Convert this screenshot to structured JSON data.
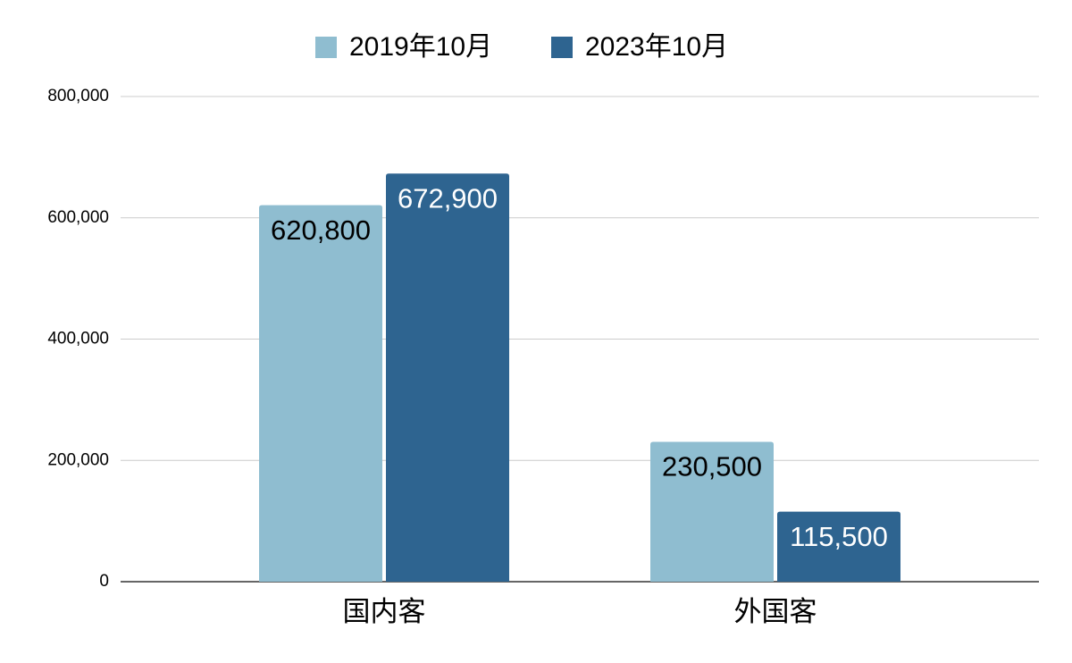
{
  "chart_data": {
    "type": "bar",
    "categories": [
      "国内客",
      "外国客"
    ],
    "series": [
      {
        "name": "2019年10月",
        "color": "#8fbdd0",
        "values": [
          620800,
          230500
        ],
        "value_labels": [
          "620,800",
          "230,500"
        ]
      },
      {
        "name": "2023年10月",
        "color": "#2e6490",
        "values": [
          672900,
          115500
        ],
        "value_labels": [
          "672,900",
          "115,500"
        ]
      }
    ],
    "ylim": [
      0,
      800000
    ],
    "yticks": [
      0,
      {
        "value": 200000,
        "label": "200,000"
      },
      {
        "value": 400000,
        "label": "400,000"
      },
      {
        "value": 600000,
        "label": "600,000"
      },
      {
        "value": 800000,
        "label": "800,000"
      }
    ],
    "grid": true,
    "legend": "top"
  }
}
